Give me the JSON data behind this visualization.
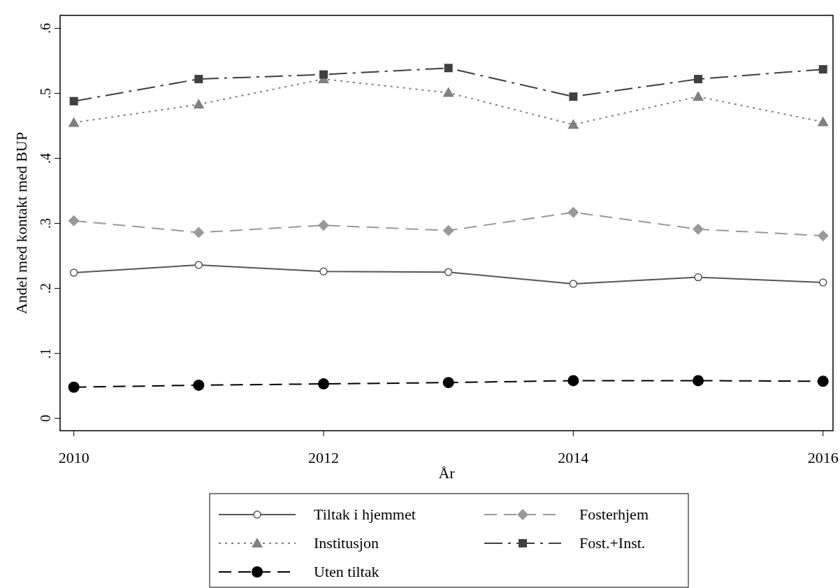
{
  "chart_data": {
    "type": "line",
    "xlabel": "År",
    "ylabel": "Andel med kontakt med BUP",
    "x": [
      2010,
      2011,
      2012,
      2013,
      2014,
      2015,
      2016
    ],
    "xlim": [
      2009.89,
      2016.08
    ],
    "xticks": [
      2010,
      2012,
      2014,
      2016
    ],
    "ylim": [
      -0.019,
      0.62
    ],
    "yticks": [
      {
        "value": 0,
        "label": "0"
      },
      {
        "value": 0.1,
        "label": ".1"
      },
      {
        "value": 0.2,
        "label": ".2"
      },
      {
        "value": 0.3,
        "label": ".3"
      },
      {
        "value": 0.4,
        "label": ".4"
      },
      {
        "value": 0.5,
        "label": ".5"
      },
      {
        "value": 0.6,
        "label": ".6"
      }
    ],
    "grid": false,
    "legend": "bottom",
    "series": [
      {
        "name": "Tiltak i hjemmet",
        "color": "#555555",
        "marker": "circle",
        "line_style": "solid",
        "values": [
          0.224,
          0.236,
          0.226,
          0.225,
          0.207,
          0.217,
          0.209
        ]
      },
      {
        "name": "Fosterhjem",
        "color": "#999999",
        "marker": "diamond",
        "line_style": "dashed",
        "values": [
          0.304,
          0.286,
          0.297,
          0.289,
          0.317,
          0.291,
          0.281
        ]
      },
      {
        "name": "Institusjon",
        "color": "#808080",
        "marker": "triangle",
        "line_style": "dotted",
        "values": [
          0.455,
          0.483,
          0.522,
          0.501,
          0.452,
          0.495,
          0.456
        ]
      },
      {
        "name": "Fost.+Inst.",
        "color": "#404040",
        "marker": "square",
        "line_style": "dashdot",
        "values": [
          0.488,
          0.522,
          0.529,
          0.539,
          0.495,
          0.522,
          0.537
        ]
      },
      {
        "name": "Uten tiltak",
        "color": "#000000",
        "marker": "circle",
        "line_style": "dashed",
        "values": [
          0.048,
          0.051,
          0.053,
          0.055,
          0.058,
          0.058,
          0.057
        ]
      }
    ]
  }
}
